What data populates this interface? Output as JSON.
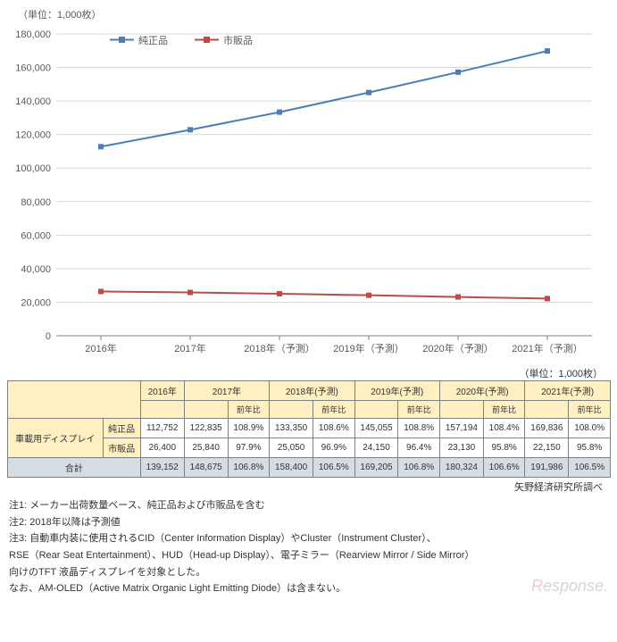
{
  "chart": {
    "unit_label": "（単位：1,000枚）",
    "type": "line",
    "categories": [
      "2016年",
      "2017年",
      "2018年（予測）",
      "2019年（予測）",
      "2020年（予測）",
      "2021年（予測）"
    ],
    "series": [
      {
        "name": "純正品",
        "color": "#4a7ebb",
        "marker": "square",
        "values": [
          112752,
          122835,
          133350,
          145055,
          157194,
          169836
        ]
      },
      {
        "name": "市販品",
        "color": "#be4b48",
        "marker": "square",
        "values": [
          26400,
          25840,
          25050,
          24150,
          23130,
          22150
        ]
      }
    ],
    "ylim": [
      0,
      180000
    ],
    "ytick_step": 20000,
    "background": "#ffffff",
    "grid_color": "#d9d9d9",
    "axis_color": "#808080",
    "axis_fontsize": 11,
    "marker_size": 6,
    "line_width": 2
  },
  "legend": {
    "items": [
      "純正品",
      "市販品"
    ]
  },
  "table": {
    "unit_label": "（単位：1,000枚）",
    "year_headers": [
      "2016年",
      "2017年",
      "2018年(予測)",
      "2019年(予測)",
      "2020年(予測)",
      "2021年(予測)"
    ],
    "sub_header": "前年比",
    "group_label": "車載用ディスプレイ",
    "rows": [
      {
        "label": "純正品",
        "vals": [
          [
            "112,752"
          ],
          [
            "122,835",
            "108.9%"
          ],
          [
            "133,350",
            "108.6%"
          ],
          [
            "145,055",
            "108.8%"
          ],
          [
            "157,194",
            "108.4%"
          ],
          [
            "169,836",
            "108.0%"
          ]
        ]
      },
      {
        "label": "市販品",
        "vals": [
          [
            "26,400"
          ],
          [
            "25,840",
            "97.9%"
          ],
          [
            "25,050",
            "96.9%"
          ],
          [
            "24,150",
            "96.4%"
          ],
          [
            "23,130",
            "95.8%"
          ],
          [
            "22,150",
            "95.8%"
          ]
        ]
      }
    ],
    "total": {
      "label": "合計",
      "vals": [
        [
          "139,152"
        ],
        [
          "148,675",
          "106.8%"
        ],
        [
          "158,400",
          "106.5%"
        ],
        [
          "169,205",
          "106.8%"
        ],
        [
          "180,324",
          "106.6%"
        ],
        [
          "191,986",
          "106.5%"
        ]
      ]
    },
    "header_bg": "#fff0c2",
    "total_bg": "#d6dce4",
    "border_color": "#808080"
  },
  "source": "矢野経済研究所調べ",
  "notes": [
    "注1: メーカー出荷数量ベース、純正品および市販品を含む",
    "注2: 2018年以降は予測値",
    "注3: 自動車内装に使用されるCID（Center Information Display）やCluster（Instrument Cluster）、",
    "RSE（Rear Seat Entertainment）、HUD（Head-up Display）、電子ミラー（Rearview Mirror / Side Mirror）",
    "向けのTFT 液晶ディスプレイを対象とした。",
    "なお、AM-OLED（Active Matrix Organic Light Emitting Diode）は含まない。"
  ],
  "watermark": "Response."
}
